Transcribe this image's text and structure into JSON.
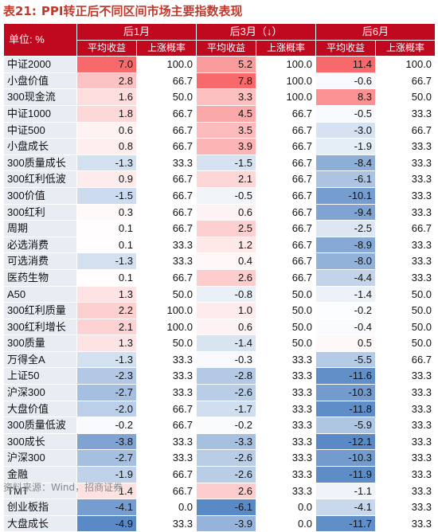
{
  "title": {
    "label": "表21:",
    "text": "PPI转正后不同区间市场主要指数表现"
  },
  "header": {
    "corner": "单位: %",
    "periods": [
      "后1月",
      "后3月（↓）",
      "后6月"
    ],
    "sub_cols": [
      "平均收益",
      "上涨概率"
    ]
  },
  "rows": [
    {
      "name": "中证2000",
      "c": [
        "7.0",
        "100.0",
        "5.2",
        "100.0",
        "11.4",
        "100.0"
      ]
    },
    {
      "name": "小盘价值",
      "c": [
        "2.8",
        "66.7",
        "7.8",
        "100.0",
        "-0.6",
        "66.7"
      ]
    },
    {
      "name": "300现金流",
      "c": [
        "1.6",
        "50.0",
        "3.3",
        "100.0",
        "8.3",
        "50.0"
      ]
    },
    {
      "name": "中证1000",
      "c": [
        "1.8",
        "66.7",
        "4.5",
        "66.7",
        "-0.5",
        "33.3"
      ]
    },
    {
      "name": "中证500",
      "c": [
        "0.6",
        "66.7",
        "3.5",
        "66.7",
        "-3.0",
        "66.7"
      ]
    },
    {
      "name": "小盘成长",
      "c": [
        "0.8",
        "66.7",
        "3.9",
        "66.7",
        "-1.9",
        "33.3"
      ]
    },
    {
      "name": "300质量成长",
      "c": [
        "-1.3",
        "33.3",
        "-1.5",
        "66.7",
        "-8.4",
        "33.3"
      ]
    },
    {
      "name": "300红利低波",
      "c": [
        "0.9",
        "66.7",
        "2.1",
        "66.7",
        "-6.1",
        "33.3"
      ]
    },
    {
      "name": "300价值",
      "c": [
        "-1.5",
        "66.7",
        "-0.5",
        "66.7",
        "-10.1",
        "33.3"
      ]
    },
    {
      "name": "300红利",
      "c": [
        "0.3",
        "66.7",
        "0.6",
        "66.7",
        "-9.4",
        "33.3"
      ]
    },
    {
      "name": "周期",
      "c": [
        "0.1",
        "66.7",
        "2.5",
        "66.7",
        "-2.5",
        "66.7"
      ]
    },
    {
      "name": "必选消费",
      "c": [
        "0.1",
        "33.3",
        "1.2",
        "66.7",
        "-8.9",
        "33.3"
      ]
    },
    {
      "name": "可选消费",
      "c": [
        "-1.3",
        "33.3",
        "0.4",
        "66.7",
        "-8.0",
        "33.3"
      ]
    },
    {
      "name": "医药生物",
      "c": [
        "0.1",
        "66.7",
        "2.6",
        "66.7",
        "-4.4",
        "33.3"
      ]
    },
    {
      "name": "A50",
      "c": [
        "1.3",
        "50.0",
        "-0.8",
        "50.0",
        "-1.4",
        "50.0"
      ]
    },
    {
      "name": "300红利质量",
      "c": [
        "2.2",
        "100.0",
        "1.0",
        "50.0",
        "-0.2",
        "50.0"
      ]
    },
    {
      "name": "300红利增长",
      "c": [
        "2.1",
        "100.0",
        "0.6",
        "50.0",
        "-0.4",
        "50.0"
      ]
    },
    {
      "name": "300质量",
      "c": [
        "1.3",
        "50.0",
        "-1.4",
        "50.0",
        "0.5",
        "50.0"
      ]
    },
    {
      "name": "万得全A",
      "c": [
        "-1.3",
        "33.3",
        "-0.3",
        "33.3",
        "-5.5",
        "66.7"
      ]
    },
    {
      "name": "上证50",
      "c": [
        "-2.3",
        "33.3",
        "-2.8",
        "33.3",
        "-11.6",
        "33.3"
      ]
    },
    {
      "name": "沪深300",
      "c": [
        "-2.7",
        "33.3",
        "-2.6",
        "33.3",
        "-10.3",
        "33.3"
      ]
    },
    {
      "name": "大盘价值",
      "c": [
        "-2.0",
        "66.7",
        "-1.7",
        "33.3",
        "-11.8",
        "33.3"
      ]
    },
    {
      "name": "300质量低波",
      "c": [
        "-0.2",
        "66.7",
        "-0.2",
        "33.3",
        "-5.9",
        "33.3"
      ]
    },
    {
      "name": "300成长",
      "c": [
        "-3.8",
        "33.3",
        "-3.3",
        "33.3",
        "-12.1",
        "33.3"
      ]
    },
    {
      "name": "沪深300",
      "c": [
        "-2.7",
        "33.3",
        "-2.6",
        "33.3",
        "-10.3",
        "33.3"
      ]
    },
    {
      "name": "金融",
      "c": [
        "-1.9",
        "66.7",
        "-2.6",
        "33.3",
        "-11.9",
        "33.3"
      ]
    },
    {
      "name": "TMT",
      "c": [
        "1.4",
        "66.7",
        "2.6",
        "33.3",
        "-1.1",
        "33.3"
      ]
    },
    {
      "name": "创业板指",
      "c": [
        "-4.1",
        "0.0",
        "-6.1",
        "0.0",
        "-4.1",
        "33.3"
      ]
    },
    {
      "name": "大盘成长",
      "c": [
        "-4.9",
        "33.3",
        "-3.9",
        "0.0",
        "-11.7",
        "33.3"
      ]
    }
  ],
  "colors": {
    "header_bg": "#c0081e",
    "name_bg": "#e7edf3",
    "positive": "#f8696b",
    "negative": "#5a8ac6"
  },
  "source": "资料来源：Wind，招商证券"
}
